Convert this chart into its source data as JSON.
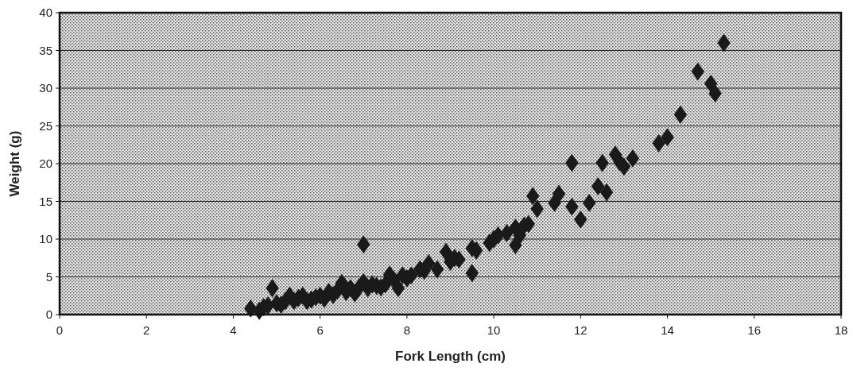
{
  "chart_data": {
    "type": "scatter",
    "xlabel": "Fork Length (cm)",
    "ylabel": "Weight (g)",
    "xlim": [
      0,
      18
    ],
    "xticks": [
      0,
      2,
      4,
      6,
      8,
      10,
      12,
      14,
      16,
      18
    ],
    "ylim": [
      0,
      40
    ],
    "yticks": [
      0,
      5,
      10,
      15,
      20,
      25,
      30,
      35,
      40
    ],
    "grid": "y",
    "marker": "diamond",
    "series": [
      {
        "color": "#1a1a1a",
        "x": [
          4.4,
          4.9,
          4.6,
          4.7,
          4.8,
          5.0,
          5.1,
          5.2,
          5.3,
          5.4,
          5.5,
          5.6,
          5.7,
          5.8,
          5.9,
          6.0,
          6.1,
          6.2,
          6.3,
          6.4,
          6.5,
          6.6,
          6.7,
          6.8,
          6.9,
          7.0,
          7.0,
          7.1,
          7.2,
          7.3,
          7.4,
          7.5,
          7.6,
          7.7,
          7.8,
          7.9,
          8.0,
          8.1,
          8.3,
          8.4,
          8.5,
          8.7,
          8.9,
          9.0,
          9.1,
          9.2,
          9.5,
          9.5,
          9.6,
          9.9,
          10.0,
          10.1,
          10.3,
          10.5,
          10.5,
          10.6,
          10.7,
          10.8,
          10.9,
          11.0,
          11.4,
          11.5,
          11.8,
          11.8,
          12.0,
          12.2,
          12.4,
          12.5,
          12.6,
          12.8,
          12.9,
          13.0,
          13.2,
          13.8,
          14.0,
          14.3,
          14.7,
          15.0,
          15.1,
          15.3
        ],
        "values": [
          0.8,
          3.5,
          0.5,
          1,
          1.2,
          1.5,
          1.3,
          1.8,
          2.5,
          1.8,
          2.2,
          2.5,
          1.8,
          2,
          2.3,
          2.5,
          2.1,
          3,
          2.6,
          3.2,
          4.2,
          3,
          3.5,
          2.8,
          3.6,
          9.3,
          4.3,
          3.5,
          4,
          3.8,
          3.6,
          4,
          5.3,
          4.6,
          3.5,
          5.2,
          4.8,
          5.2,
          6,
          5.8,
          6.8,
          6,
          8.3,
          7,
          7.5,
          7.3,
          5.5,
          8.8,
          8.5,
          9.5,
          10,
          10.5,
          10.8,
          9.2,
          11.5,
          10.5,
          11.8,
          12,
          15.7,
          14,
          14.8,
          16,
          20.1,
          14.3,
          12.6,
          14.8,
          17,
          20.1,
          16.2,
          21.2,
          20.2,
          19.6,
          20.7,
          22.7,
          23.5,
          26.5,
          32.2,
          30.6,
          29.3,
          36
        ]
      }
    ]
  }
}
